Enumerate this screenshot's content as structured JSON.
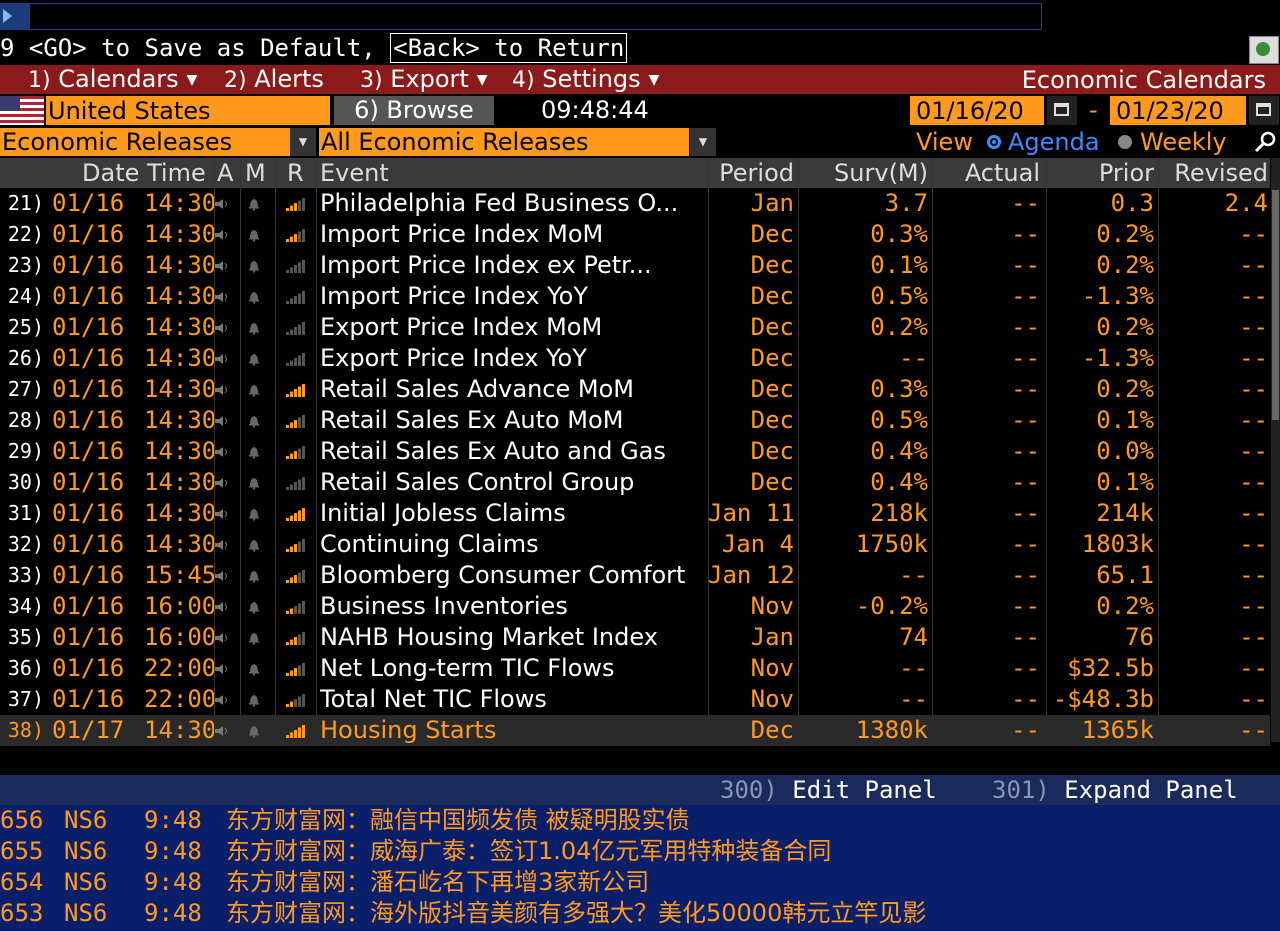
{
  "command": {
    "hint_pre": "9 <GO> to Save as Default, ",
    "hint_back": "<Back> to Return"
  },
  "menu": {
    "items": [
      {
        "num": "1)",
        "label": "Calendars"
      },
      {
        "num": "2)",
        "label": "Alerts"
      },
      {
        "num": "3)",
        "label": "Export"
      },
      {
        "num": "4)",
        "label": "Settings"
      }
    ],
    "title": "Economic Calendars"
  },
  "filters": {
    "country": "United States",
    "browse": "6) Browse",
    "clock": "09:48:44",
    "date_from": "01/16/20",
    "date_to": "01/23/20",
    "date_sep": "-",
    "category": "Economic Releases",
    "subcategory": "All Economic Releases",
    "view_label": "View",
    "view_agenda": "Agenda",
    "view_weekly": "Weekly"
  },
  "table": {
    "headers": {
      "datetime": "Date Time",
      "a": "A",
      "m": "M",
      "r": "R",
      "event": "Event",
      "period": "Period",
      "surv": "Surv(M)",
      "actual": "Actual",
      "prior": "Prior",
      "revised": "Revised"
    },
    "rows": [
      {
        "n": "21)",
        "date": "01/16",
        "time": "14:30",
        "event": "Philadelphia Fed Business O...",
        "period": "Jan",
        "surv": "3.7",
        "actual": "--",
        "prior": "0.3",
        "revised": "2.4",
        "rel": 3
      },
      {
        "n": "22)",
        "date": "01/16",
        "time": "14:30",
        "event": "Import Price Index MoM",
        "period": "Dec",
        "surv": "0.3%",
        "actual": "--",
        "prior": "0.2%",
        "revised": "--",
        "rel": 3
      },
      {
        "n": "23)",
        "date": "01/16",
        "time": "14:30",
        "event": "Import Price Index ex Petr...",
        "period": "Dec",
        "surv": "0.1%",
        "actual": "--",
        "prior": "0.2%",
        "revised": "--",
        "rel": 0
      },
      {
        "n": "24)",
        "date": "01/16",
        "time": "14:30",
        "event": "Import Price Index YoY",
        "period": "Dec",
        "surv": "0.5%",
        "actual": "--",
        "prior": "-1.3%",
        "revised": "--",
        "rel": 0
      },
      {
        "n": "25)",
        "date": "01/16",
        "time": "14:30",
        "event": "Export Price Index MoM",
        "period": "Dec",
        "surv": "0.2%",
        "actual": "--",
        "prior": "0.2%",
        "revised": "--",
        "rel": 0
      },
      {
        "n": "26)",
        "date": "01/16",
        "time": "14:30",
        "event": "Export Price Index YoY",
        "period": "Dec",
        "surv": "--",
        "actual": "--",
        "prior": "-1.3%",
        "revised": "--",
        "rel": 0
      },
      {
        "n": "27)",
        "date": "01/16",
        "time": "14:30",
        "event": "Retail Sales Advance MoM",
        "period": "Dec",
        "surv": "0.3%",
        "actual": "--",
        "prior": "0.2%",
        "revised": "--",
        "rel": 5
      },
      {
        "n": "28)",
        "date": "01/16",
        "time": "14:30",
        "event": "Retail Sales Ex Auto MoM",
        "period": "Dec",
        "surv": "0.5%",
        "actual": "--",
        "prior": "0.1%",
        "revised": "--",
        "rel": 3
      },
      {
        "n": "29)",
        "date": "01/16",
        "time": "14:30",
        "event": "Retail Sales Ex Auto and Gas",
        "period": "Dec",
        "surv": "0.4%",
        "actual": "--",
        "prior": "0.0%",
        "revised": "--",
        "rel": 3
      },
      {
        "n": "30)",
        "date": "01/16",
        "time": "14:30",
        "event": "Retail Sales Control Group",
        "period": "Dec",
        "surv": "0.4%",
        "actual": "--",
        "prior": "0.1%",
        "revised": "--",
        "rel": 0
      },
      {
        "n": "31)",
        "date": "01/16",
        "time": "14:30",
        "event": "Initial Jobless Claims",
        "period": "Jan 11",
        "surv": "218k",
        "actual": "--",
        "prior": "214k",
        "revised": "--",
        "rel": 5
      },
      {
        "n": "32)",
        "date": "01/16",
        "time": "14:30",
        "event": "Continuing Claims",
        "period": "Jan 4",
        "surv": "1750k",
        "actual": "--",
        "prior": "1803k",
        "revised": "--",
        "rel": 3
      },
      {
        "n": "33)",
        "date": "01/16",
        "time": "15:45",
        "event": "Bloomberg Consumer Comfort",
        "period": "Jan 12",
        "surv": "--",
        "actual": "--",
        "prior": "65.1",
        "revised": "--",
        "rel": 3
      },
      {
        "n": "34)",
        "date": "01/16",
        "time": "16:00",
        "event": "Business Inventories",
        "period": "Nov",
        "surv": "-0.2%",
        "actual": "--",
        "prior": "0.2%",
        "revised": "--",
        "rel": 2
      },
      {
        "n": "35)",
        "date": "01/16",
        "time": "16:00",
        "event": "NAHB Housing Market Index",
        "period": "Jan",
        "surv": "74",
        "actual": "--",
        "prior": "76",
        "revised": "--",
        "rel": 3
      },
      {
        "n": "36)",
        "date": "01/16",
        "time": "22:00",
        "event": "Net Long-term TIC Flows",
        "period": "Nov",
        "surv": "--",
        "actual": "--",
        "prior": "$32.5b",
        "revised": "--",
        "rel": 3
      },
      {
        "n": "37)",
        "date": "01/16",
        "time": "22:00",
        "event": "Total Net TIC Flows",
        "period": "Nov",
        "surv": "--",
        "actual": "--",
        "prior": "-$48.3b",
        "revised": "--",
        "rel": 2
      },
      {
        "n": "38)",
        "date": "01/17",
        "time": "14:30",
        "event": "Housing Starts",
        "period": "Dec",
        "surv": "1380k",
        "actual": "--",
        "prior": "1365k",
        "revised": "--",
        "rel": 5
      }
    ]
  },
  "panel": {
    "edit_num": "300)",
    "edit_label": "Edit Panel",
    "expand_num": "301)",
    "expand_label": "Expand Panel"
  },
  "news": [
    {
      "n": "656",
      "src": "NS6",
      "t": "9:48",
      "h": "东方财富网：融信中国频发债 被疑明股实债"
    },
    {
      "n": "655",
      "src": "NS6",
      "t": "9:48",
      "h": "东方财富网：威海广泰：签订1.04亿元军用特种装备合同"
    },
    {
      "n": "654",
      "src": "NS6",
      "t": "9:48",
      "h": "东方财富网：潘石屹名下再增3家新公司"
    },
    {
      "n": "653",
      "src": "NS6",
      "t": "9:48",
      "h": "东方财富网：海外版抖音美颜有多强大？美化50000韩元立竿见影"
    }
  ],
  "colors": {
    "accent": "#ff9a1f",
    "menubar": "#8b1a1a",
    "news_bg": "#0a1f6a",
    "agenda_blue": "#3c8cff"
  }
}
